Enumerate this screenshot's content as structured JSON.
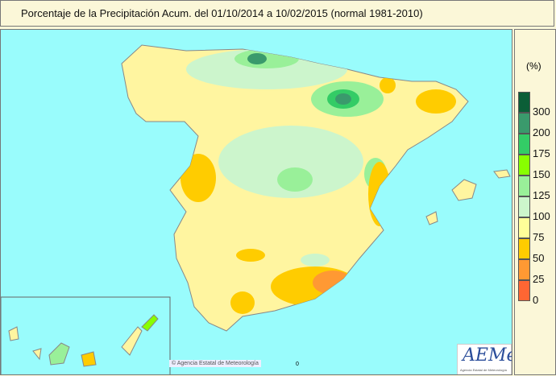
{
  "title": "Porcentaje de la Precipitación Acum. del 01/10/2014 a  10/02/2015  (normal 1981-2010)",
  "legend": {
    "unit": "(%)",
    "bands": [
      {
        "label": "300",
        "color": "#0b5e37"
      },
      {
        "label": "200",
        "color": "#3a9a6c"
      },
      {
        "label": "175",
        "color": "#33cc66"
      },
      {
        "label": "150",
        "color": "#88ff00"
      },
      {
        "label": "125",
        "color": "#99f099"
      },
      {
        "label": "100",
        "color": "#ccf5cc"
      },
      {
        "label": "75",
        "color": "#ffff99"
      },
      {
        "label": "50",
        "color": "#ffcc00"
      },
      {
        "label": "25",
        "color": "#ff9933"
      },
      {
        "label": "0",
        "color": "#ff6633"
      }
    ]
  },
  "footer": {
    "copyright": "© Agencia Estatal de Meteorología",
    "marker": "0"
  },
  "logo": {
    "text": "AEMet",
    "subtitle": "Agencia Estatal de Meteorología"
  },
  "colors": {
    "sea": "#99fcfc",
    "background": "#fbf7d8"
  }
}
